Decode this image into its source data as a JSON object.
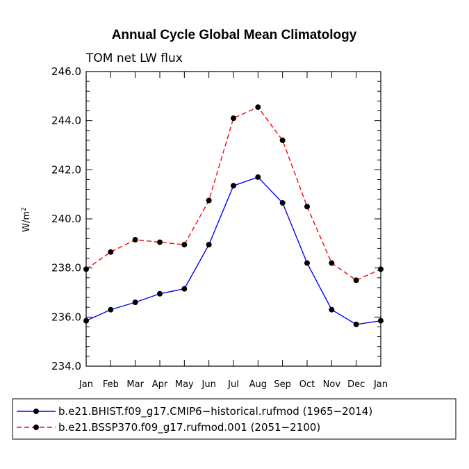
{
  "chart_data": {
    "type": "line",
    "title": "Annual Cycle Global Mean Climatology",
    "subtitle": "TOM net LW flux",
    "xlabel": "",
    "ylabel_base": "W/m",
    "ylabel_sup": "2",
    "ylim": [
      234.0,
      246.0
    ],
    "y_ticks": [
      "234.0",
      "236.0",
      "238.0",
      "240.0",
      "242.0",
      "244.0",
      "246.0"
    ],
    "y_tick_values": [
      234,
      236,
      238,
      240,
      242,
      244,
      246
    ],
    "categories": [
      "Jan",
      "Feb",
      "Mar",
      "Apr",
      "May",
      "Jun",
      "Jul",
      "Aug",
      "Sep",
      "Oct",
      "Nov",
      "Dec",
      "Jan"
    ],
    "grid": false,
    "legend_position": "bottom",
    "series": [
      {
        "name": "b.e21.BHIST.f09_g17.CMIP6−historical.rufmod (1965−2014)",
        "color": "#0000ff",
        "dash": "solid",
        "values": [
          235.85,
          236.3,
          236.6,
          236.95,
          237.15,
          238.95,
          241.35,
          241.7,
          240.65,
          238.2,
          236.3,
          235.7,
          235.85
        ]
      },
      {
        "name": "b.e21.BSSP370.f09_g17.rufmod.001 (2051−2100)",
        "color": "#ff0000",
        "dash": "dashed",
        "values": [
          237.95,
          238.65,
          239.15,
          239.05,
          238.95,
          240.75,
          244.1,
          244.55,
          243.2,
          240.5,
          238.2,
          237.5,
          237.95
        ]
      }
    ]
  }
}
